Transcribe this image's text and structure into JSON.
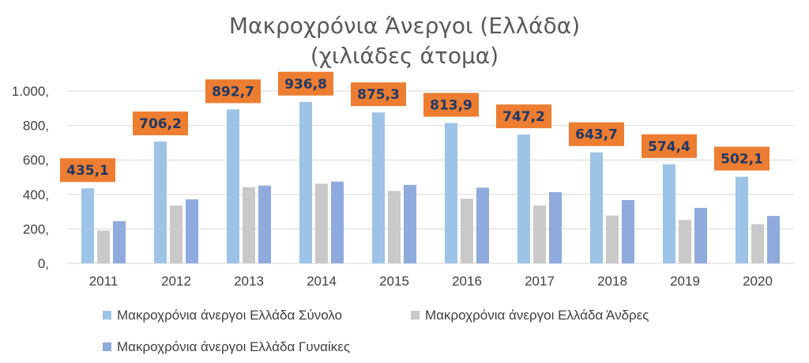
{
  "chart_data": {
    "type": "bar",
    "title": [
      "Μακροχρόνια Άνεργοι (Ελλάδα)",
      "(χιλιάδες άτομα)"
    ],
    "categories": [
      "2011",
      "2012",
      "2013",
      "2014",
      "2015",
      "2016",
      "2017",
      "2018",
      "2019",
      "2020"
    ],
    "series": [
      {
        "name": "Μακροχρόνια άνεργοι Ελλάδα Σύνολο",
        "color": "#9dc3e6",
        "values": [
          435.1,
          706.2,
          892.7,
          936.8,
          875.3,
          813.9,
          747.2,
          643.7,
          574.4,
          502.1
        ]
      },
      {
        "name": "Μακροχρόνια άνεργοι Ελλάδα Άνδρες",
        "color": "#c9c9c9",
        "values": [
          190,
          335,
          442,
          462,
          420,
          375,
          335,
          277,
          252,
          227
        ]
      },
      {
        "name": "Μακροχρόνια άνεργοι Ελλάδα Γυναίκες",
        "color": "#8faadc",
        "values": [
          245,
          371,
          451,
          474,
          455,
          439,
          413,
          367,
          322,
          275
        ]
      }
    ],
    "data_labels": [
      "435,1",
      "706,2",
      "892,7",
      "936,8",
      "875,3",
      "813,9",
      "747,2",
      "643,7",
      "574,4",
      "502,1"
    ],
    "data_label_style": {
      "background": "#ed7d31",
      "text_color": "#1f3864"
    },
    "y_ticks": [
      {
        "value": 0,
        "label": "0,"
      },
      {
        "value": 200,
        "label": "200,"
      },
      {
        "value": 400,
        "label": "400,"
      },
      {
        "value": 600,
        "label": "600,"
      },
      {
        "value": 800,
        "label": "800,"
      },
      {
        "value": 1000,
        "label": "1.000,"
      }
    ],
    "ylim": [
      0,
      1000
    ],
    "grid": true,
    "legend_position": "bottom"
  }
}
